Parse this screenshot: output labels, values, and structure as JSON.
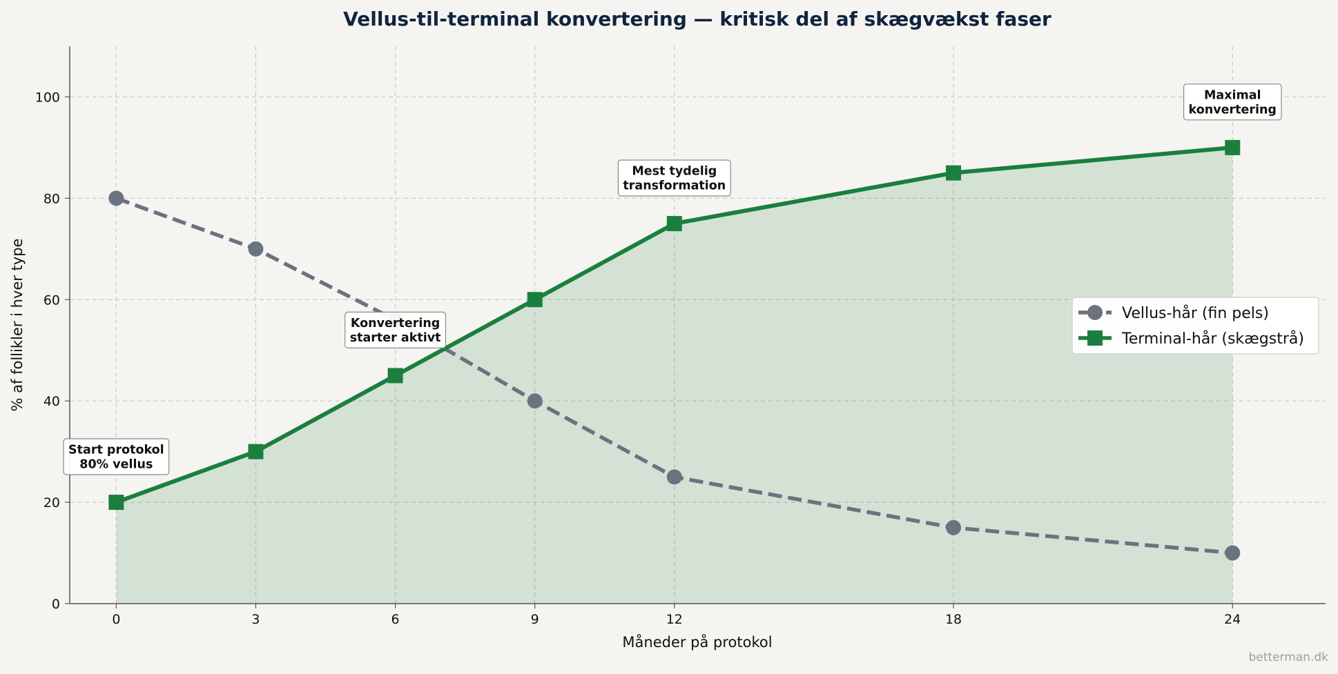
{
  "chart_data": {
    "type": "line",
    "title": "Vellus-til-terminal konvertering — kritisk del af skægvækst faser",
    "xlabel": "Måneder på protokol",
    "ylabel": "% af follikler i hver type",
    "x": [
      0,
      3,
      6,
      9,
      12,
      18,
      24
    ],
    "xticks": [
      "0",
      "3",
      "6",
      "9",
      "12",
      "18",
      "24"
    ],
    "yticks": [
      "0",
      "20",
      "40",
      "60",
      "80",
      "100"
    ],
    "xlim": [
      -1,
      26
    ],
    "ylim": [
      0,
      110
    ],
    "grid": true,
    "legend_position": "center-right",
    "series": [
      {
        "name": "Vellus-hår (fin pels)",
        "values": [
          80,
          70,
          56,
          40,
          25,
          15,
          10
        ],
        "color": "#6b7280",
        "line_style": "dashed",
        "marker": "circle"
      },
      {
        "name": "Terminal-hår (skægstrå)",
        "values": [
          20,
          30,
          45,
          60,
          75,
          85,
          90
        ],
        "color": "#1a7f3e",
        "line_style": "solid",
        "marker": "square",
        "fill": true
      }
    ],
    "annotations": [
      {
        "x": 0,
        "y": 29,
        "lines": [
          "Start protokol",
          "80% vellus"
        ]
      },
      {
        "x": 6,
        "y": 54,
        "lines": [
          "Konvertering",
          "starter aktivt"
        ]
      },
      {
        "x": 12,
        "y": 84,
        "lines": [
          "Mest tydelig",
          "transformation"
        ]
      },
      {
        "x": 24,
        "y": 99,
        "lines": [
          "Maximal",
          "konvertering"
        ]
      }
    ]
  },
  "watermark": "betterman.dk"
}
